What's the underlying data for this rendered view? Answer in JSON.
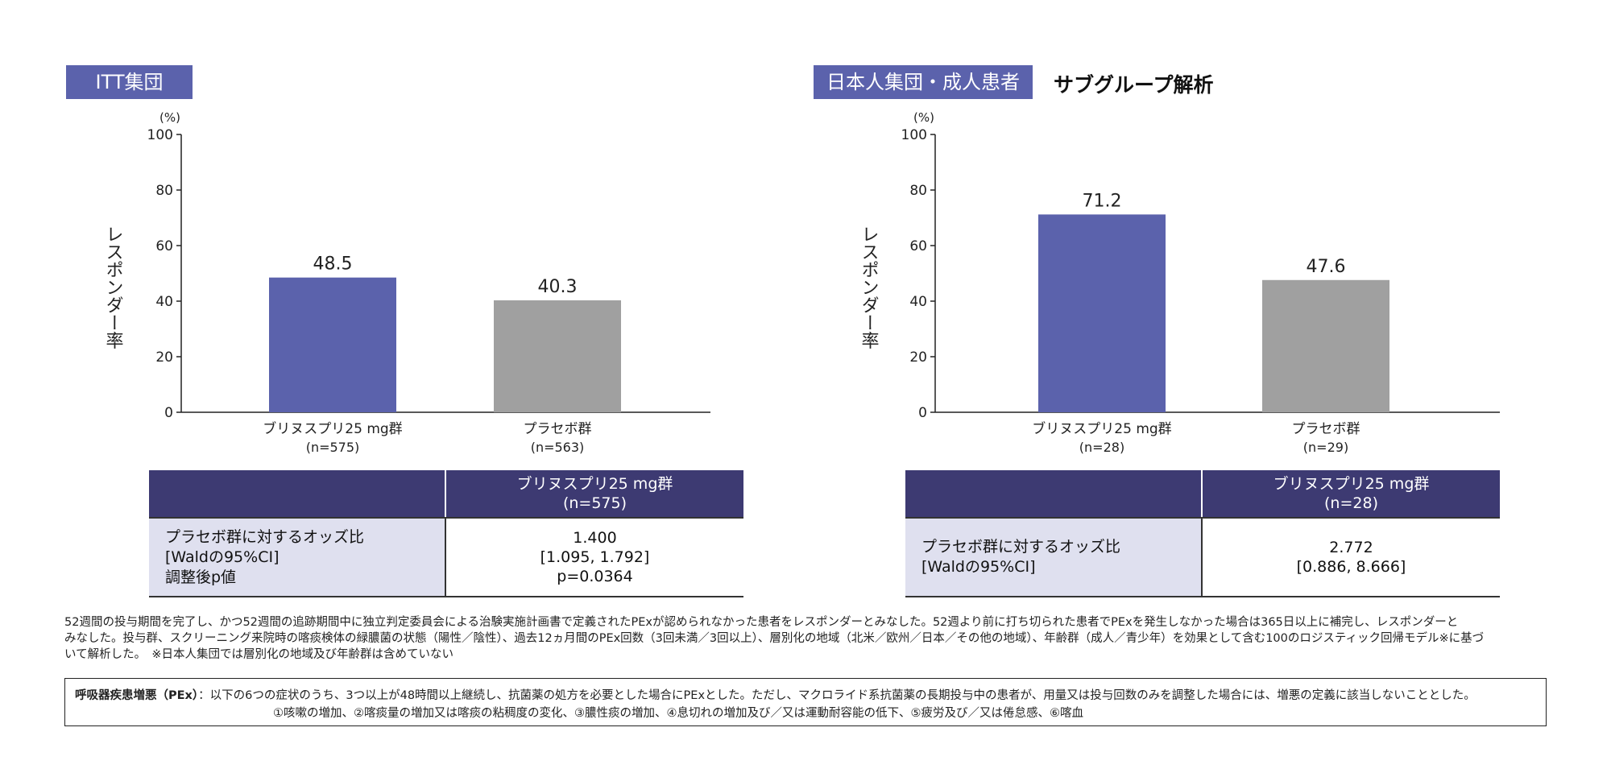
{
  "panels": [
    {
      "label": "ITT集団",
      "subtitle": "",
      "table": {
        "header_line1": "ブリヌスプリ25 mg群",
        "header_line2": "(n=575)",
        "row_label_lines": [
          "プラセボ群に対するオッズ比",
          "[Waldの95%CI]",
          "調整後p値"
        ],
        "value_lines": [
          "1.400",
          "[1.095, 1.792]",
          "p=0.0364"
        ]
      }
    },
    {
      "label": "日本人集団・成人患者",
      "subtitle": "サブグループ解析",
      "table": {
        "header_line1": "ブリヌスプリ25 mg群",
        "header_line2": "(n=28)",
        "row_label_lines": [
          "プラセボ群に対するオッズ比",
          "[Waldの95%CI]"
        ],
        "value_lines": [
          "2.772",
          "[0.886, 8.666]"
        ]
      }
    }
  ],
  "chart_data": [
    {
      "type": "bar",
      "ylabel": "レスポンダー率",
      "yunit": "(%)",
      "ylim": [
        0,
        100
      ],
      "yticks": [
        0,
        20,
        40,
        60,
        80,
        100
      ],
      "categories": [
        "ブリヌスプリ25 mg群",
        "プラセボ群"
      ],
      "category_n": [
        "(n=575)",
        "(n=563)"
      ],
      "values": [
        48.5,
        40.3
      ],
      "value_labels": [
        "48.5",
        "40.3"
      ],
      "colors": [
        "#5b62ac",
        "#a0a0a0"
      ]
    },
    {
      "type": "bar",
      "ylabel": "レスポンダー率",
      "yunit": "(%)",
      "ylim": [
        0,
        100
      ],
      "yticks": [
        0,
        20,
        40,
        60,
        80,
        100
      ],
      "categories": [
        "ブリヌスプリ25 mg群",
        "プラセボ群"
      ],
      "category_n": [
        "(n=28)",
        "(n=29)"
      ],
      "values": [
        71.2,
        47.6
      ],
      "value_labels": [
        "71.2",
        "47.6"
      ],
      "colors": [
        "#5b62ac",
        "#a0a0a0"
      ]
    }
  ],
  "footnote": [
    "52週間の投与期間を完了し、かつ52週間の追跡期間中に独立判定委員会による治験実施計画書で定義されたPExが認められなかった患者をレスポンダーとみなした。52週より前に打ち切られた患者でPExを発生しなかった場合は365日以上に補完し、レスポンダーと",
    "みなした。投与群、スクリーニング来院時の喀痰検体の緑膿菌の状態（陽性／陰性）、過去12ヵ月間のPEx回数（3回未満／3回以上）、層別化の地域（北米／欧州／日本／その他の地域）、年齢群（成人／青少年）を効果として含む100のロジスティック回帰モデル※に基づ",
    "いて解析した。　※日本人集団では層別化の地域及び年齢群は含めていない"
  ],
  "definition": {
    "term": "呼吸器疾患増悪（PEx）",
    "line1": "：以下の6つの症状のうち、3つ以上が48時間以上継続し、抗菌薬の処方を必要とした場合にPExとした。ただし、マクロライド系抗菌薬の長期投与中の患者が、用量又は投与回数のみを調整した場合には、増悪の定義に該当しないこととした。",
    "line2": "①咳嗽の増加、②喀痰量の増加又は喀痰の粘稠度の変化、③膿性痰の増加、④息切れの増加及び／又は運動耐容能の低下、⑤疲労及び／又は倦怠感、⑥喀血"
  }
}
